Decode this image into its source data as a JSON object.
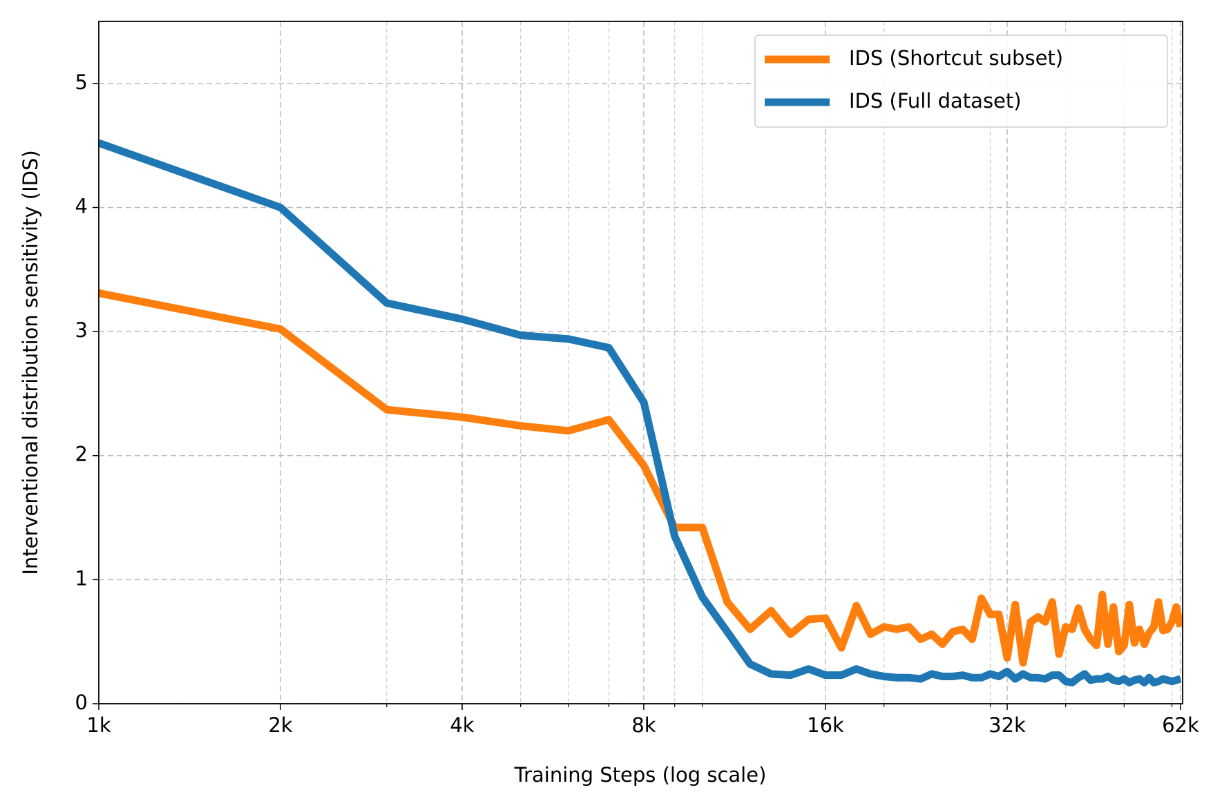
{
  "chart_data": {
    "type": "line",
    "xlabel": "Training Steps (log scale)",
    "ylabel": "Interventional distribution sensitivity (IDS)",
    "x": [
      1000,
      2000,
      3000,
      4000,
      5000,
      6000,
      7000,
      8000,
      9000,
      10000,
      11000,
      12000,
      13000,
      14000,
      15000,
      16000,
      17000,
      18000,
      19000,
      20000,
      21000,
      22000,
      23000,
      24000,
      25000,
      26000,
      27000,
      28000,
      29000,
      30000,
      31000,
      32000,
      33000,
      34000,
      35000,
      36000,
      37000,
      38000,
      39000,
      40000,
      41000,
      42000,
      43000,
      44000,
      45000,
      46000,
      47000,
      48000,
      49000,
      50000,
      51000,
      52000,
      53000,
      54000,
      55000,
      56000,
      57000,
      58000,
      59000,
      60000,
      61000,
      62000
    ],
    "series": [
      {
        "name": "IDS (Shortcut subset)",
        "color": "#ff7f0e",
        "values": [
          3.31,
          3.02,
          2.37,
          2.31,
          2.24,
          2.2,
          2.29,
          1.92,
          1.42,
          1.42,
          0.82,
          0.6,
          0.75,
          0.56,
          0.68,
          0.69,
          0.45,
          0.79,
          0.56,
          0.62,
          0.6,
          0.62,
          0.52,
          0.56,
          0.48,
          0.58,
          0.6,
          0.52,
          0.85,
          0.72,
          0.72,
          0.37,
          0.8,
          0.33,
          0.66,
          0.7,
          0.66,
          0.82,
          0.4,
          0.62,
          0.6,
          0.77,
          0.6,
          0.52,
          0.47,
          0.88,
          0.48,
          0.78,
          0.42,
          0.47,
          0.8,
          0.49,
          0.6,
          0.48,
          0.57,
          0.62,
          0.82,
          0.59,
          0.6,
          0.66,
          0.78,
          0.62
        ]
      },
      {
        "name": "IDS (Full dataset)",
        "color": "#1f77b4",
        "values": [
          4.52,
          4.0,
          3.23,
          3.1,
          2.97,
          2.94,
          2.87,
          2.43,
          1.35,
          0.86,
          0.58,
          0.32,
          0.24,
          0.23,
          0.28,
          0.23,
          0.23,
          0.28,
          0.24,
          0.22,
          0.21,
          0.21,
          0.2,
          0.24,
          0.22,
          0.22,
          0.23,
          0.21,
          0.21,
          0.24,
          0.22,
          0.26,
          0.2,
          0.24,
          0.21,
          0.21,
          0.2,
          0.23,
          0.23,
          0.18,
          0.17,
          0.21,
          0.24,
          0.19,
          0.2,
          0.2,
          0.22,
          0.19,
          0.18,
          0.2,
          0.17,
          0.19,
          0.2,
          0.17,
          0.21,
          0.17,
          0.18,
          0.2,
          0.19,
          0.18,
          0.19,
          0.2
        ]
      }
    ],
    "xscale": "log",
    "xlim": [
      1000,
      62500
    ],
    "xticks": [
      {
        "value": 1000,
        "label": "1k"
      },
      {
        "value": 2000,
        "label": "2k"
      },
      {
        "value": 4000,
        "label": "4k"
      },
      {
        "value": 8000,
        "label": "8k"
      },
      {
        "value": 16000,
        "label": "16k"
      },
      {
        "value": 32000,
        "label": "32k"
      },
      {
        "value": 62000,
        "label": "62k"
      }
    ],
    "xminorticks": [
      3000,
      5000,
      6000,
      7000,
      9000,
      10000,
      20000,
      30000,
      40000,
      50000,
      60000
    ],
    "ylim": [
      0,
      5.5
    ],
    "yticks": [
      0,
      1,
      2,
      3,
      4,
      5
    ],
    "grid": true,
    "legend": "upper right"
  }
}
